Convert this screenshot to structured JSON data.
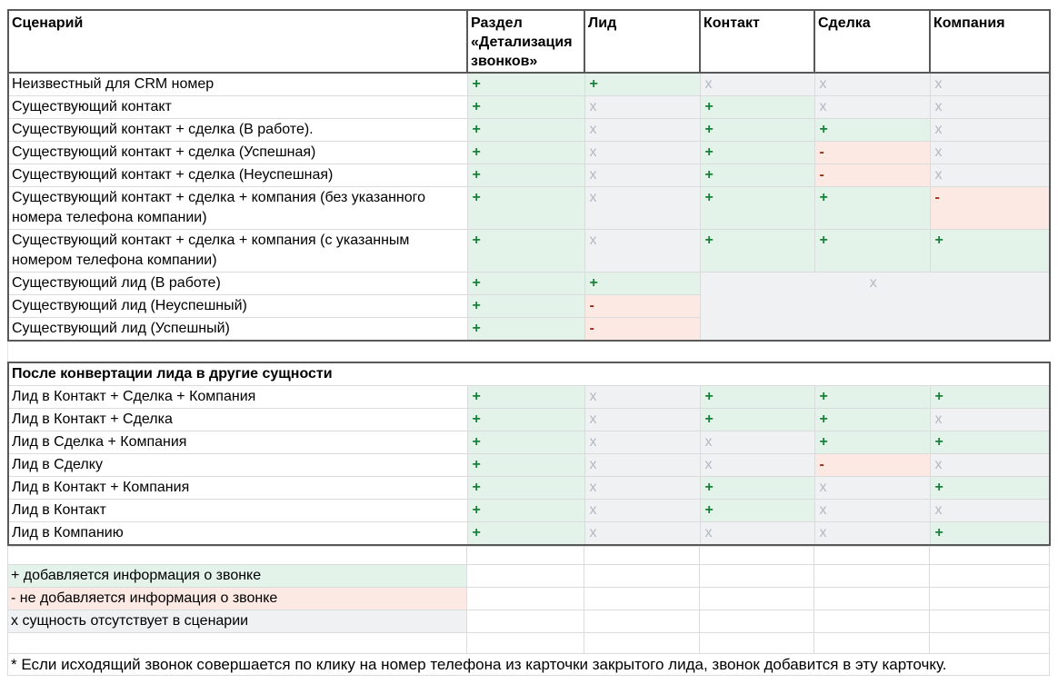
{
  "columns": [
    "Сценарий",
    "Раздел «Детализация звонков»",
    "Лид",
    "Контакт",
    "Сделка",
    "Компания"
  ],
  "table1": {
    "rows": [
      {
        "label": "Неизвестный для CRM номер",
        "cells": [
          "+",
          "+",
          "x",
          "x",
          "x"
        ]
      },
      {
        "label": "Существующий контакт",
        "cells": [
          "+",
          "x",
          "+",
          "x",
          "x"
        ]
      },
      {
        "label": "Существующий контакт + сделка (В работе).",
        "cells": [
          "+",
          "x",
          "+",
          "+",
          "x"
        ]
      },
      {
        "label": "Существующий контакт + сделка (Успешная)",
        "cells": [
          "+",
          "x",
          "+",
          "-",
          "x"
        ]
      },
      {
        "label": "Существующий контакт + сделка (Неуспешная)",
        "cells": [
          "+",
          "x",
          "+",
          "-",
          "x"
        ]
      },
      {
        "label": "Существующий контакт + сделка + компания (без указанного номера телефона компании)",
        "cells": [
          "+",
          "x",
          "+",
          "+",
          "-"
        ],
        "tall": true
      },
      {
        "label": "Существующий контакт + сделка + компания (с указанным номером телефона компании)",
        "cells": [
          "+",
          "x",
          "+",
          "+",
          "+"
        ],
        "tall": true
      },
      {
        "label": "Существующий лид (В работе)",
        "cells": [
          "+",
          "+"
        ],
        "merge_after": {
          "value": "x",
          "colspan": 3,
          "rowspan": 3
        }
      },
      {
        "label": "Существующий лид (Неуспешный)",
        "cells": [
          "+",
          "-"
        ]
      },
      {
        "label": "Существующий лид (Успешный)",
        "cells": [
          "+",
          "-"
        ]
      }
    ]
  },
  "section2_title": "После конвертации лида в другие сущности",
  "table2": {
    "rows": [
      {
        "label": "Лид в Контакт + Сделка + Компания",
        "cells": [
          "+",
          "x",
          "+",
          "+",
          "+"
        ]
      },
      {
        "label": "Лид в Контакт + Сделка",
        "cells": [
          "+",
          "x",
          "+",
          "+",
          "x"
        ]
      },
      {
        "label": "Лид в Сделка + Компания",
        "cells": [
          "+",
          "x",
          "x",
          "+",
          "+"
        ]
      },
      {
        "label": "Лид в Сделку",
        "cells": [
          "+",
          "x",
          "x",
          "-",
          "x"
        ]
      },
      {
        "label": "Лид в Контакт + Компания",
        "cells": [
          "+",
          "x",
          "+",
          "x",
          "+"
        ]
      },
      {
        "label": "Лид в Контакт",
        "cells": [
          "+",
          "x",
          "+",
          "x",
          "x"
        ]
      },
      {
        "label": "Лид в Компанию",
        "cells": [
          "+",
          "x",
          "x",
          "x",
          "+"
        ]
      }
    ]
  },
  "legend": [
    {
      "text": "+ добавляется информация о звонке",
      "type": "plus"
    },
    {
      "text": "- не добавляется информация о звонке",
      "type": "minus"
    },
    {
      "text": "x сущность отсутствует в сценарии",
      "type": "x"
    }
  ],
  "footnote": "* Если исходящий звонок совершается по клику на номер телефона из карточки закрытого лида, звонок добавится в эту карточку.",
  "colors": {
    "plus_bg": "#e3f3ea",
    "plus_text": "#188038",
    "minus_bg": "#fce9e3",
    "minus_text": "#943018",
    "x_bg": "#eff1f3",
    "x_text": "#b2b9c2",
    "border_dark": "#595959",
    "border_light": "#d9dbdd"
  }
}
